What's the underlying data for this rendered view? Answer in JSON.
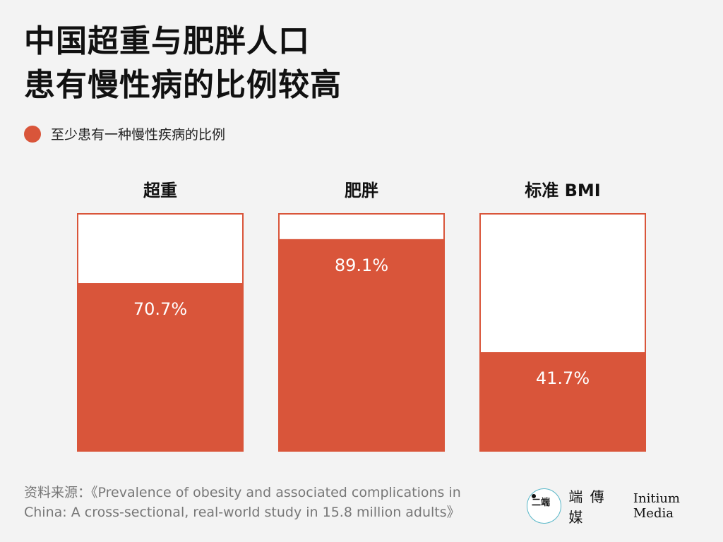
{
  "title_line1": "中国超重与肥胖人口",
  "title_line2": "患有慢性病的比例较高",
  "legend_label": "至少患有一种慢性疾病的比例",
  "colors": {
    "fill": "#d9553a",
    "empty": "#ffffff",
    "text_on_fill": "#ffffff"
  },
  "chart_data": {
    "type": "bar",
    "categories": [
      "超重",
      "肥胖",
      "标准 BMI"
    ],
    "series": [
      {
        "name": "至少患有一种慢性疾病的比例",
        "values": [
          70.7,
          89.1,
          41.7
        ]
      }
    ],
    "value_labels": [
      "70.7%",
      "89.1%",
      "41.7%"
    ],
    "ylim": [
      0,
      100
    ],
    "unit": "%",
    "grid": false,
    "legend": "top-left"
  },
  "source_line1": "资料来源：《Prevalence of obesity and associated complications in",
  "source_line2": "China: A cross-sectional, real-world study in 15.8 million adults》",
  "brand": {
    "logo_glyph": "二端",
    "name_cn": "端 傳 媒",
    "name_en": "Initium Media"
  }
}
